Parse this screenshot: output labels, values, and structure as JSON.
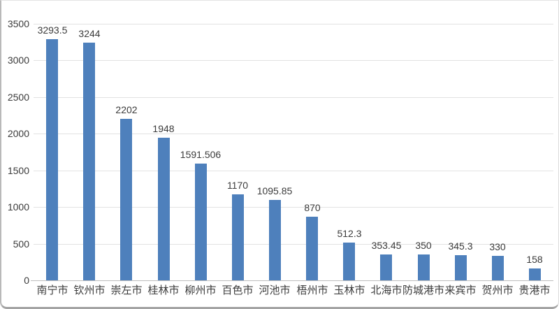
{
  "chart_data": {
    "type": "bar",
    "title": "",
    "xlabel": "",
    "ylabel": "",
    "categories": [
      "南宁市",
      "钦州市",
      "崇左市",
      "桂林市",
      "柳州市",
      "百色市",
      "河池市",
      "梧州市",
      "玉林市",
      "北海市",
      "防城港市",
      "来宾市",
      "贺州市",
      "贵港市"
    ],
    "values": [
      3293.5,
      3244,
      2202,
      1948,
      1591.506,
      1170,
      1095.85,
      870,
      512.3,
      353.45,
      350,
      345.3,
      330,
      158
    ],
    "value_labels": [
      "3293.5",
      "3244",
      "2202",
      "1948",
      "1591.506",
      "1170",
      "1095.85",
      "870",
      "512.3",
      "353.45",
      "350",
      "345.3",
      "330",
      "158"
    ],
    "yticks": [
      0,
      500,
      1000,
      1500,
      2000,
      2500,
      3000,
      3500
    ],
    "ylim": [
      0,
      3500
    ],
    "grid": true,
    "legend": false,
    "bar_color": "#4e80bc",
    "gridline_color": "#e2e2e2",
    "axis_line_color": "#bdbdbd",
    "axis_text_color": "#3b3b3b"
  }
}
